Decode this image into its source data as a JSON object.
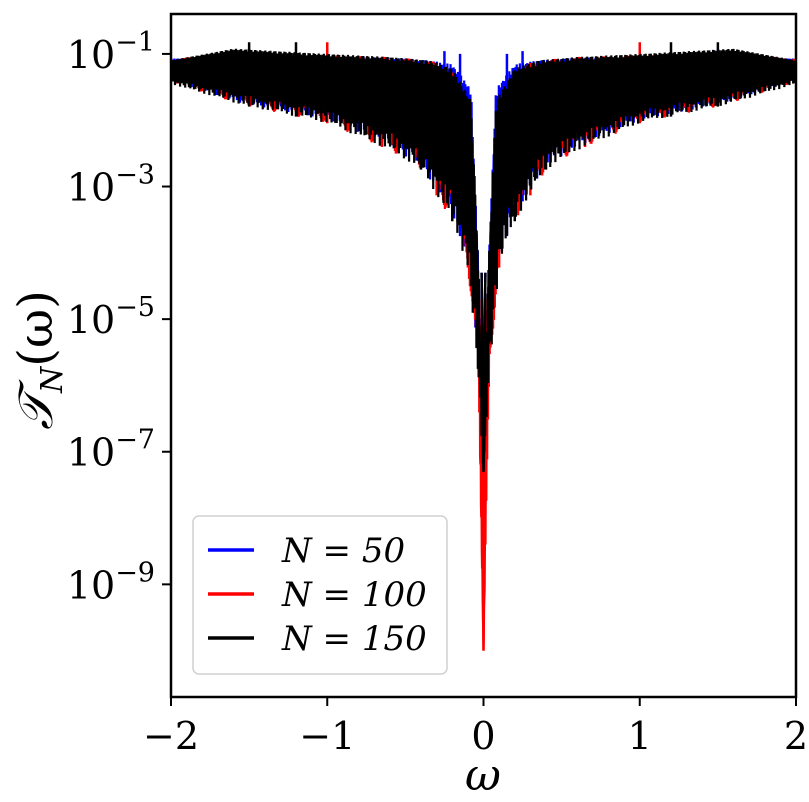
{
  "chart_data": {
    "type": "line",
    "xlabel": "ω",
    "ylabel": "𝒯N(ω)",
    "ylabel_main": "𝒯",
    "ylabel_sub": "N",
    "ylabel_tail": "(ω)",
    "xlim": [
      -2,
      2
    ],
    "ylim": [
      2e-11,
      0.4
    ],
    "yscale": "log",
    "grid": false,
    "legend_position": "bottom-left",
    "x_ticks": [
      {
        "value": -2,
        "label": "−2"
      },
      {
        "value": -1,
        "label": "−1"
      },
      {
        "value": 0,
        "label": "0"
      },
      {
        "value": 1,
        "label": "1"
      },
      {
        "value": 2,
        "label": "2"
      }
    ],
    "y_ticks": [
      {
        "value": 0.1,
        "base": "10",
        "exp": "−1"
      },
      {
        "value": 0.001,
        "base": "10",
        "exp": "−3"
      },
      {
        "value": 1e-05,
        "base": "10",
        "exp": "−5"
      },
      {
        "value": 1e-07,
        "base": "10",
        "exp": "−7"
      },
      {
        "value": 1e-09,
        "base": "10",
        "exp": "−9"
      }
    ],
    "series": [
      {
        "name": "N = 50",
        "legend_label": "N = 50",
        "color": "#0000ff",
        "min_at_zero": 1.5e-07,
        "upper_envelope": [
          [
            -2,
            0.085
          ],
          [
            -1.6,
            0.09
          ],
          [
            -1.0,
            0.09
          ],
          [
            -0.6,
            0.088
          ],
          [
            -0.35,
            0.08
          ],
          [
            -0.2,
            0.07
          ],
          [
            -0.08,
            0.03
          ],
          [
            -0.03,
            5e-05
          ],
          [
            0,
            1.5e-07
          ]
        ],
        "lower_envelope": [
          [
            -2,
            0.04
          ],
          [
            -1.55,
            0.018
          ],
          [
            -1.0,
            0.01
          ],
          [
            -0.6,
            0.004
          ],
          [
            -0.4,
            0.002
          ],
          [
            -0.2,
            0.0004
          ],
          [
            -0.1,
            8e-05
          ],
          [
            -0.04,
            3e-06
          ],
          [
            0,
            1.5e-07
          ]
        ],
        "spikes": [
          [
            -1.5,
            0.12
          ],
          [
            -0.5,
            0.085
          ],
          [
            -0.25,
            0.11
          ],
          [
            -0.15,
            0.1
          ],
          [
            0.15,
            0.1
          ],
          [
            0.25,
            0.11
          ],
          [
            1.5,
            0.12
          ]
        ]
      },
      {
        "name": "N = 100",
        "legend_label": "N = 100",
        "color": "#ff0000",
        "min_at_zero": 1e-10,
        "upper_envelope": [
          [
            -2,
            0.085
          ],
          [
            -1.6,
            0.1
          ],
          [
            -1.0,
            0.095
          ],
          [
            -0.6,
            0.09
          ],
          [
            -0.35,
            0.08
          ],
          [
            -0.2,
            0.06
          ],
          [
            -0.08,
            0.005
          ],
          [
            -0.03,
            2e-05
          ],
          [
            0,
            1e-10
          ]
        ],
        "lower_envelope": [
          [
            -2,
            0.038
          ],
          [
            -1.55,
            0.017
          ],
          [
            -1.0,
            0.009
          ],
          [
            -0.6,
            0.0035
          ],
          [
            -0.4,
            0.0018
          ],
          [
            -0.2,
            0.0003
          ],
          [
            -0.1,
            6e-05
          ],
          [
            -0.04,
            2e-06
          ],
          [
            0,
            1e-10
          ]
        ],
        "spikes": [
          [
            -1.0,
            0.15
          ],
          [
            -0.65,
            0.06
          ],
          [
            -0.3,
            0.02
          ],
          [
            -0.1,
            0.001
          ],
          [
            0.1,
            0.001
          ],
          [
            0.3,
            0.02
          ],
          [
            0.65,
            0.06
          ],
          [
            1.0,
            0.15
          ]
        ]
      },
      {
        "name": "N = 150",
        "legend_label": "N = 150",
        "color": "#000000",
        "min_at_zero": 5e-08,
        "upper_envelope": [
          [
            -2,
            0.08
          ],
          [
            -1.6,
            0.12
          ],
          [
            -1.0,
            0.1
          ],
          [
            -0.6,
            0.09
          ],
          [
            -0.35,
            0.08
          ],
          [
            -0.2,
            0.06
          ],
          [
            -0.08,
            0.02
          ],
          [
            -0.03,
            5e-05
          ],
          [
            0,
            5e-08
          ]
        ],
        "lower_envelope": [
          [
            -2,
            0.035
          ],
          [
            -1.55,
            0.017
          ],
          [
            -1.0,
            0.009
          ],
          [
            -0.6,
            0.0035
          ],
          [
            -0.4,
            0.0018
          ],
          [
            -0.2,
            0.0003
          ],
          [
            -0.1,
            6e-05
          ],
          [
            -0.04,
            2e-06
          ],
          [
            0,
            5e-08
          ]
        ],
        "spikes": [
          [
            -1.5,
            0.15
          ],
          [
            -1.2,
            0.15
          ],
          [
            -0.4,
            0.06
          ],
          [
            -0.2,
            0.008
          ],
          [
            0.2,
            0.008
          ],
          [
            0.4,
            0.06
          ],
          [
            1.2,
            0.15
          ],
          [
            1.5,
            0.15
          ]
        ]
      }
    ]
  }
}
